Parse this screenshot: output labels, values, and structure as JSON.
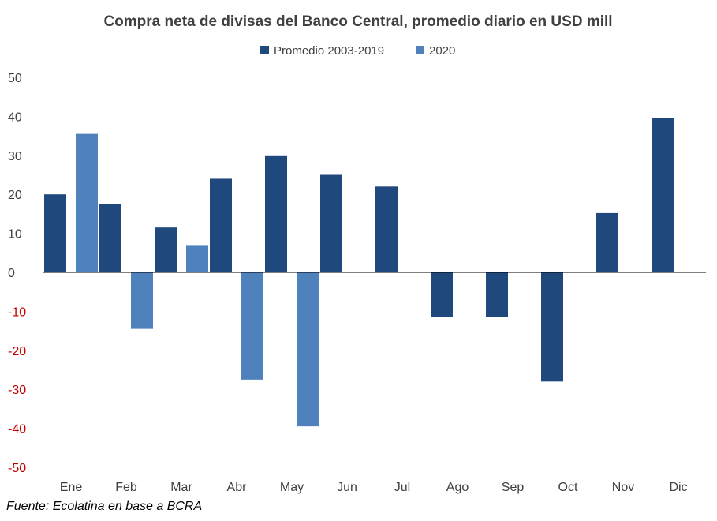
{
  "chart_data": {
    "type": "bar",
    "title": "Compra neta de divisas del Banco Central, promedio diario en USD mill",
    "categories": [
      "Ene",
      "Feb",
      "Mar",
      "Abr",
      "May",
      "Jun",
      "Jul",
      "Ago",
      "Sep",
      "Oct",
      "Nov",
      "Dic"
    ],
    "series": [
      {
        "name": "Promedio 2003-2019",
        "color": "#1f497d",
        "values": [
          20,
          17.5,
          11.5,
          24,
          30,
          25,
          22,
          -11.5,
          -11.5,
          -28,
          15.2,
          39.5
        ]
      },
      {
        "name": "2020",
        "color": "#4f81bd",
        "values": [
          35.5,
          -14.5,
          7,
          -27.5,
          -39.5,
          null,
          null,
          null,
          null,
          null,
          null,
          null
        ]
      }
    ],
    "ylim": [
      -50,
      50
    ],
    "yticks": [
      50,
      40,
      30,
      20,
      10,
      0,
      -10,
      -20,
      -30,
      -40,
      -50
    ],
    "ytick_labels": [
      "50",
      "40",
      "30",
      "20",
      "10",
      "0",
      "-10",
      "-20",
      "-30",
      "-40",
      "-50"
    ],
    "positive_tick_color": "#404040",
    "negative_tick_color": "#c00000",
    "grid": false,
    "legend_position": "top-center",
    "xlabel": "",
    "ylabel": ""
  },
  "source": "Fuente: Ecolatina en base a BCRA"
}
